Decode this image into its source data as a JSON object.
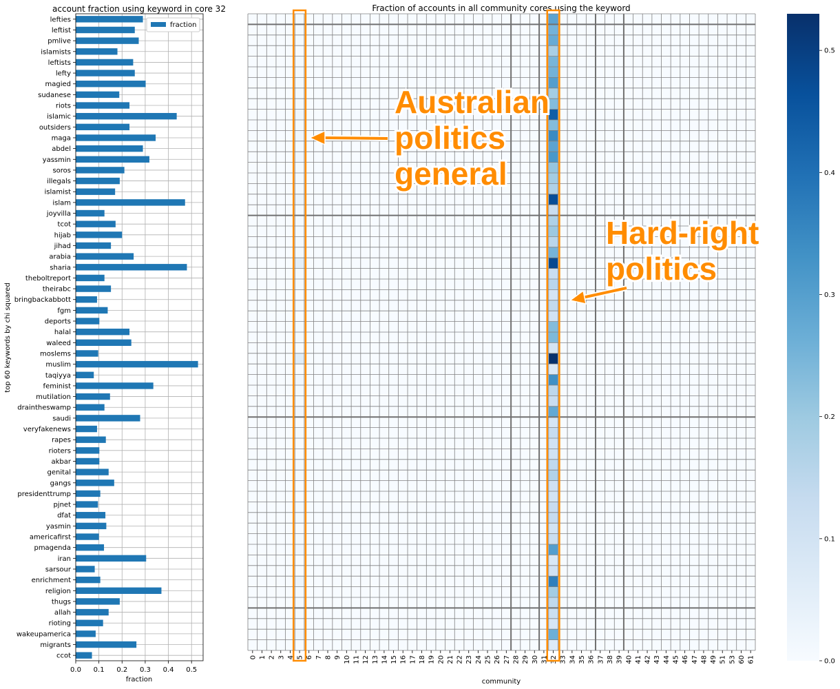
{
  "annotations": {
    "australian": [
      "Australian",
      "politics",
      "general"
    ],
    "hardright": [
      "Hard-right",
      "politics"
    ],
    "color": "#ff8c00"
  },
  "chart_data": [
    {
      "type": "bar",
      "orientation": "horizontal",
      "title": "account fraction using keyword in core 32",
      "xlabel": "fraction",
      "ylabel": "top 60 keywords by chi squared",
      "xlim": [
        0,
        0.55
      ],
      "xticks": [
        "0.0",
        "0.1",
        "0.2",
        "0.3",
        "0.4",
        "0.5"
      ],
      "grid": true,
      "legend": {
        "position": "top-right",
        "entries": [
          "fraction"
        ]
      },
      "bar_color": "#1f77b4",
      "categories": [
        "lefties",
        "leftist",
        "pmlive",
        "islamists",
        "leftists",
        "lefty",
        "magied",
        "sudanese",
        "riots",
        "islamic",
        "outsiders",
        "maga",
        "abdel",
        "yassmin",
        "soros",
        "illegals",
        "islamist",
        "islam",
        "joyvilla",
        "tcot",
        "hijab",
        "jihad",
        "arabia",
        "sharia",
        "theboltreport",
        "theirabc",
        "bringbackabbott",
        "fgm",
        "deports",
        "halal",
        "waleed",
        "moslems",
        "muslim",
        "taqiyya",
        "feminist",
        "mutilation",
        "draintheswamp",
        "saudi",
        "veryfakenews",
        "rapes",
        "rioters",
        "akbar",
        "genital",
        "gangs",
        "presidenttrump",
        "pjnet",
        "dfat",
        "yasmin",
        "americafirst",
        "pmagenda",
        "iran",
        "sarsour",
        "enrichment",
        "religion",
        "thugs",
        "allah",
        "rioting",
        "wakeupamerica",
        "migrants",
        "ccot"
      ],
      "series": [
        {
          "name": "fraction",
          "values": [
            0.29,
            0.255,
            0.272,
            0.18,
            0.248,
            0.255,
            0.302,
            0.188,
            0.232,
            0.436,
            0.232,
            0.345,
            0.29,
            0.318,
            0.21,
            0.19,
            0.17,
            0.472,
            0.124,
            0.172,
            0.2,
            0.152,
            0.25,
            0.48,
            0.124,
            0.152,
            0.092,
            0.138,
            0.102,
            0.232,
            0.24,
            0.097,
            0.528,
            0.078,
            0.335,
            0.148,
            0.124,
            0.278,
            0.092,
            0.13,
            0.102,
            0.102,
            0.142,
            0.166,
            0.106,
            0.096,
            0.128,
            0.132,
            0.1,
            0.122,
            0.304,
            0.082,
            0.106,
            0.37,
            0.19,
            0.142,
            0.118,
            0.086,
            0.262,
            0.07
          ]
        }
      ]
    },
    {
      "type": "heatmap",
      "title": "Fraction of accounts in all community cores using the keyword",
      "xlabel": "community",
      "x": [
        "0",
        "1",
        "2",
        "3",
        "4",
        "5",
        "6",
        "7",
        "8",
        "9",
        "10",
        "11",
        "12",
        "13",
        "14",
        "15",
        "16",
        "17",
        "18",
        "19",
        "20",
        "21",
        "22",
        "23",
        "24",
        "25",
        "26",
        "27",
        "28",
        "29",
        "30",
        "31",
        "32",
        "33",
        "34",
        "35",
        "36",
        "37",
        "38",
        "39",
        "40",
        "41",
        "42",
        "43",
        "44",
        "45",
        "46",
        "47",
        "48",
        "49",
        "51",
        "53",
        "60",
        "61"
      ],
      "y_rows": 60,
      "colormap": "Blues",
      "colorbar": {
        "min": 0.0,
        "max": 0.53,
        "ticks": [
          "0.0",
          "0.1",
          "0.2",
          "0.3",
          "0.4",
          "0.5"
        ]
      },
      "highlight_columns": [
        "5",
        "32"
      ],
      "column_32_values": [
        0.29,
        0.255,
        0.272,
        0.18,
        0.248,
        0.255,
        0.302,
        0.188,
        0.232,
        0.436,
        0.232,
        0.345,
        0.29,
        0.318,
        0.21,
        0.19,
        0.17,
        0.472,
        0.124,
        0.172,
        0.2,
        0.152,
        0.25,
        0.48,
        0.124,
        0.152,
        0.092,
        0.138,
        0.102,
        0.232,
        0.24,
        0.097,
        0.528,
        0.078,
        0.335,
        0.148,
        0.124,
        0.278,
        0.092,
        0.13,
        0.102,
        0.102,
        0.142,
        0.166,
        0.106,
        0.096,
        0.128,
        0.132,
        0.1,
        0.122,
        0.304,
        0.082,
        0.106,
        0.37,
        0.19,
        0.142,
        0.118,
        0.086,
        0.262,
        0.07
      ],
      "column_5_values": [
        0.01,
        0.01,
        0.01,
        0.0,
        0.01,
        0.01,
        0.01,
        0.01,
        0.01,
        0.02,
        0.01,
        0.02,
        0.01,
        0.02,
        0.01,
        0.01,
        0.01,
        0.03,
        0.01,
        0.01,
        0.01,
        0.01,
        0.01,
        0.05,
        0.01,
        0.01,
        0.0,
        0.01,
        0.0,
        0.01,
        0.01,
        0.0,
        0.06,
        0.0,
        0.02,
        0.01,
        0.01,
        0.02,
        0.0,
        0.01,
        0.0,
        0.0,
        0.01,
        0.01,
        0.0,
        0.0,
        0.01,
        0.01,
        0.0,
        0.01,
        0.02,
        0.0,
        0.0,
        0.03,
        0.01,
        0.01,
        0.01,
        0.0,
        0.02,
        0.0
      ],
      "other_columns_approx": 0.0
    }
  ]
}
